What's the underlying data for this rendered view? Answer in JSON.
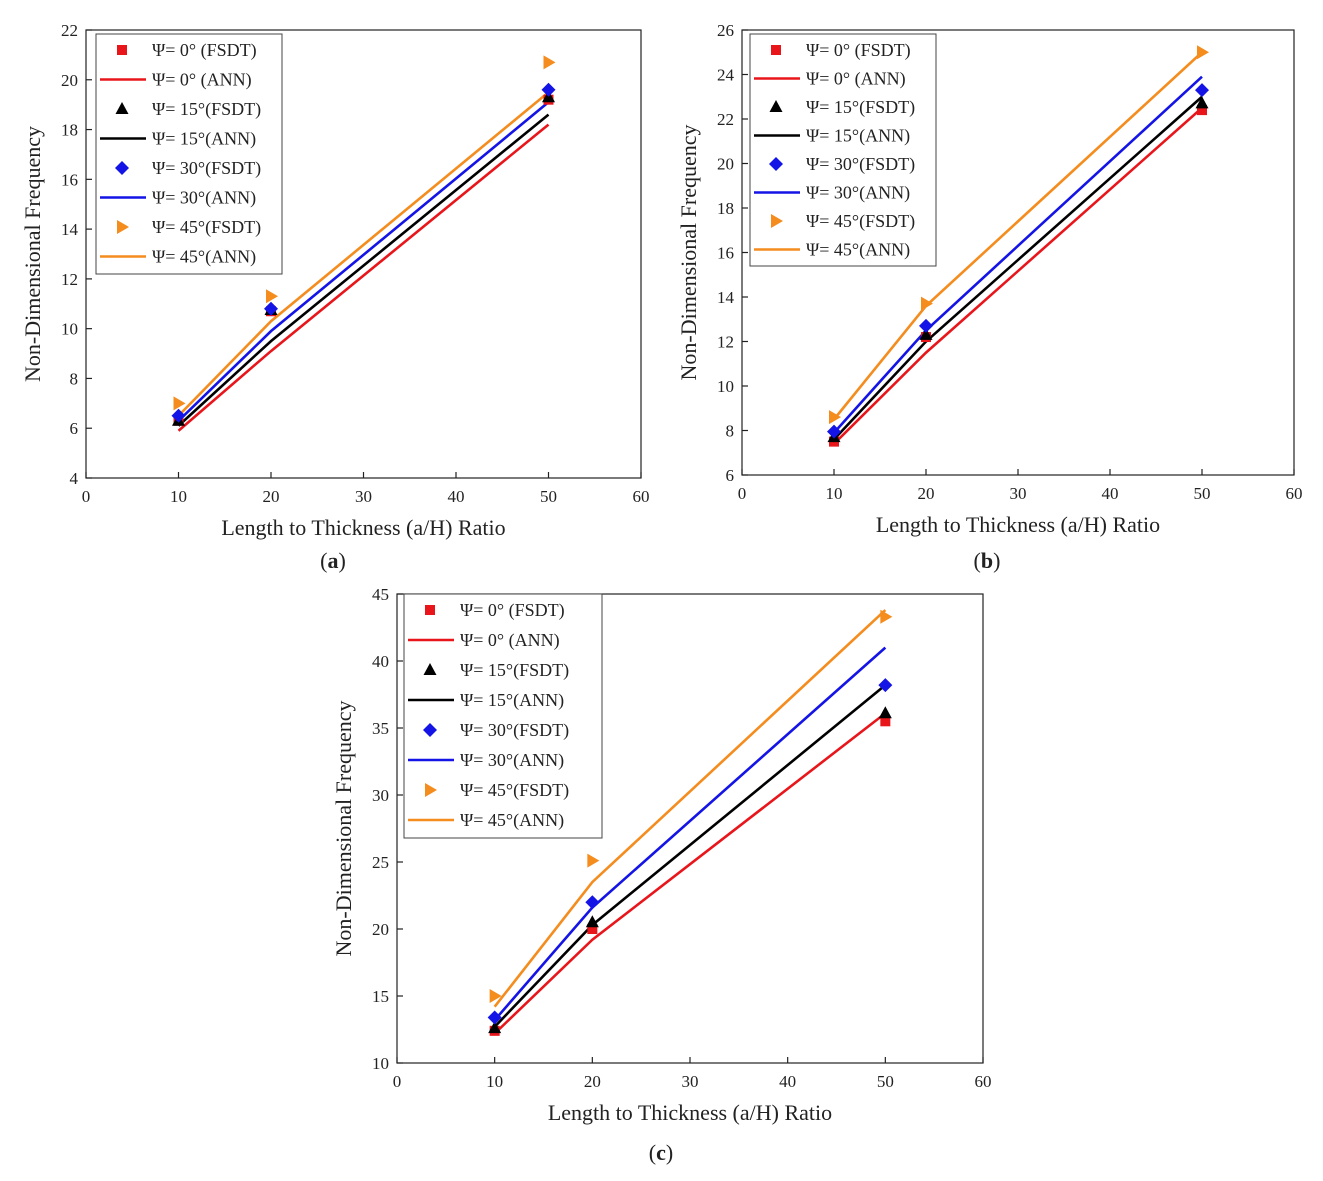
{
  "chart_data": [
    {
      "type": "line",
      "panel": "a",
      "caption": "(a)",
      "xlabel": "Length to Thickness (a/H) Ratio",
      "ylabel": "Non-Dimensional Frequency",
      "xlim": [
        0,
        60
      ],
      "ylim": [
        4,
        22
      ],
      "xticks": [
        0,
        10,
        20,
        30,
        40,
        50,
        60
      ],
      "yticks": [
        4,
        6,
        8,
        10,
        12,
        14,
        16,
        18,
        20,
        22
      ],
      "grid": false,
      "legend_position": "top-left",
      "x": [
        10,
        20,
        50
      ],
      "series": [
        {
          "name": "Ψ= 0°  (FSDT)",
          "kind": "marker",
          "marker": "square",
          "color": "#e8161b",
          "values": [
            6.3,
            10.7,
            19.2
          ]
        },
        {
          "name": "Ψ= 0°  (ANN)",
          "kind": "line",
          "color": "#e8161b",
          "values": [
            5.9,
            9.1,
            18.2
          ]
        },
        {
          "name": "Ψ= 15°(FSDT)",
          "kind": "marker",
          "marker": "triangle",
          "color": "#000000",
          "values": [
            6.3,
            10.75,
            19.3
          ]
        },
        {
          "name": "Ψ= 15°(ANN)",
          "kind": "line",
          "color": "#000000",
          "values": [
            6.1,
            9.5,
            18.6
          ]
        },
        {
          "name": "Ψ= 30°(FSDT)",
          "kind": "marker",
          "marker": "diamond",
          "color": "#1414e6",
          "values": [
            6.5,
            10.8,
            19.6
          ]
        },
        {
          "name": "Ψ= 30°(ANN)",
          "kind": "line",
          "color": "#1414e6",
          "values": [
            6.3,
            9.9,
            19.1
          ]
        },
        {
          "name": "Ψ= 45°(FSDT)",
          "kind": "marker",
          "marker": "tri-right",
          "color": "#f48c1e",
          "values": [
            7.0,
            11.3,
            20.7
          ]
        },
        {
          "name": "Ψ= 45°(ANN)",
          "kind": "line",
          "color": "#f48c1e",
          "values": [
            6.5,
            10.3,
            19.5
          ]
        }
      ]
    },
    {
      "type": "line",
      "panel": "b",
      "caption": "(b)",
      "xlabel": "Length to Thickness (a/H) Ratio",
      "ylabel": "Non-Dimensional Frequency",
      "xlim": [
        0,
        60
      ],
      "ylim": [
        6,
        26
      ],
      "xticks": [
        0,
        10,
        20,
        30,
        40,
        50,
        60
      ],
      "yticks": [
        6,
        8,
        10,
        12,
        14,
        16,
        18,
        20,
        22,
        24,
        26
      ],
      "grid": false,
      "legend_position": "top-left",
      "x": [
        10,
        20,
        50
      ],
      "series": [
        {
          "name": "Ψ= 0°  (FSDT)",
          "kind": "marker",
          "marker": "square",
          "color": "#e8161b",
          "values": [
            7.5,
            12.2,
            22.4
          ]
        },
        {
          "name": "Ψ= 0°  (ANN)",
          "kind": "line",
          "color": "#e8161b",
          "values": [
            7.4,
            11.5,
            22.5
          ]
        },
        {
          "name": "Ψ= 15°(FSDT)",
          "kind": "marker",
          "marker": "triangle",
          "color": "#000000",
          "values": [
            7.7,
            12.3,
            22.7
          ]
        },
        {
          "name": "Ψ= 15°(ANN)",
          "kind": "line",
          "color": "#000000",
          "values": [
            7.6,
            12.0,
            23.0
          ]
        },
        {
          "name": "Ψ= 30°(FSDT)",
          "kind": "marker",
          "marker": "diamond",
          "color": "#1414e6",
          "values": [
            7.95,
            12.7,
            23.3
          ]
        },
        {
          "name": "Ψ= 30°(ANN)",
          "kind": "line",
          "color": "#1414e6",
          "values": [
            7.9,
            12.5,
            23.9
          ]
        },
        {
          "name": "Ψ= 45°(FSDT)",
          "kind": "marker",
          "marker": "tri-right",
          "color": "#f48c1e",
          "values": [
            8.6,
            13.7,
            25.0
          ]
        },
        {
          "name": "Ψ= 45°(ANN)",
          "kind": "line",
          "color": "#f48c1e",
          "values": [
            8.5,
            13.6,
            25.0
          ]
        }
      ]
    },
    {
      "type": "line",
      "panel": "c",
      "caption": "(c)",
      "xlabel": "Length to Thickness (a/H) Ratio",
      "ylabel": "Non-Dimensional Frequency",
      "xlim": [
        0,
        60
      ],
      "ylim": [
        10,
        45
      ],
      "xticks": [
        0,
        10,
        20,
        30,
        40,
        50,
        60
      ],
      "yticks": [
        10,
        15,
        20,
        25,
        30,
        35,
        40,
        45
      ],
      "grid": false,
      "legend_position": "top-left",
      "x": [
        10,
        20,
        50
      ],
      "series": [
        {
          "name": "Ψ= 0°  (FSDT)",
          "kind": "marker",
          "marker": "square",
          "color": "#e8161b",
          "values": [
            12.4,
            20.0,
            35.5
          ]
        },
        {
          "name": "Ψ= 0°  (ANN)",
          "kind": "line",
          "color": "#e8161b",
          "values": [
            12.2,
            19.2,
            36.1
          ]
        },
        {
          "name": "Ψ= 15°(FSDT)",
          "kind": "marker",
          "marker": "triangle",
          "color": "#000000",
          "values": [
            12.6,
            20.5,
            36.1
          ]
        },
        {
          "name": "Ψ= 15°(ANN)",
          "kind": "line",
          "color": "#000000",
          "values": [
            12.7,
            20.3,
            38.2
          ]
        },
        {
          "name": "Ψ= 30°(FSDT)",
          "kind": "marker",
          "marker": "diamond",
          "color": "#1414e6",
          "values": [
            13.4,
            22.0,
            38.2
          ]
        },
        {
          "name": "Ψ= 30°(ANN)",
          "kind": "line",
          "color": "#1414e6",
          "values": [
            13.2,
            21.6,
            41.0
          ]
        },
        {
          "name": "Ψ= 45°(FSDT)",
          "kind": "marker",
          "marker": "tri-right",
          "color": "#f48c1e",
          "values": [
            15.0,
            25.1,
            43.3
          ]
        },
        {
          "name": "Ψ= 45°(ANN)",
          "kind": "line",
          "color": "#f48c1e",
          "values": [
            14.2,
            23.5,
            43.8
          ]
        }
      ]
    }
  ]
}
